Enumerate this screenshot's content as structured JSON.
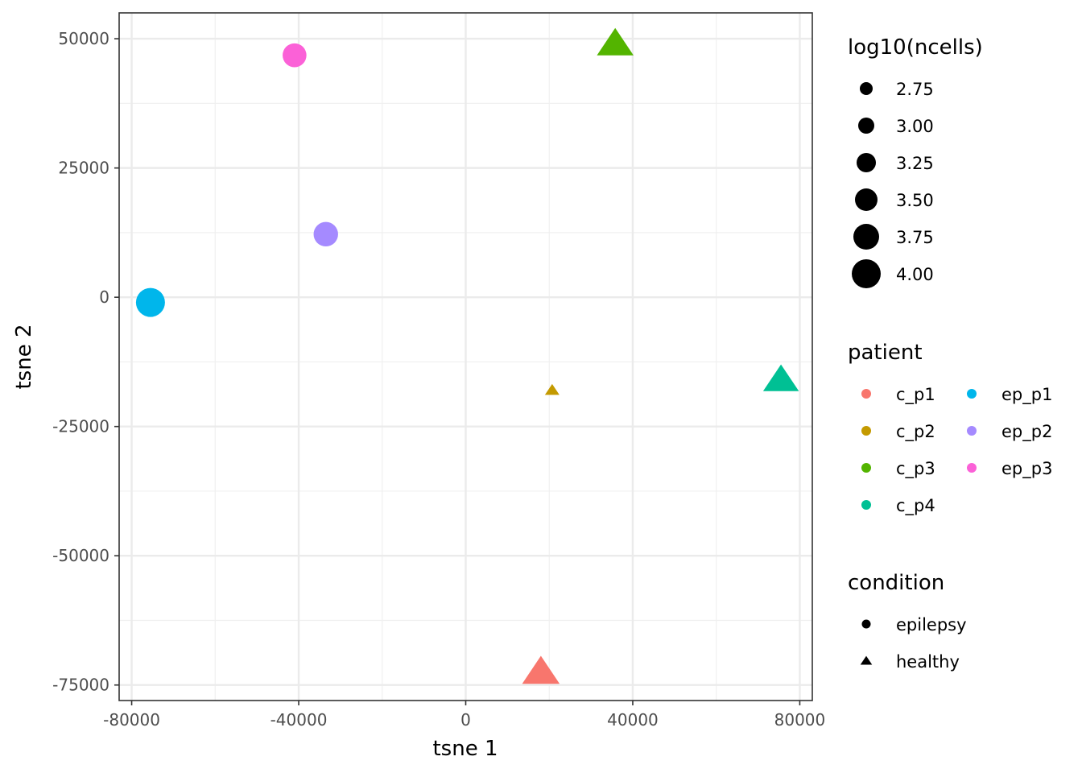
{
  "chart_data": {
    "type": "scatter",
    "title": "",
    "xlabel": "tsne 1",
    "ylabel": "tsne 2",
    "xlim": [
      -83000,
      83000
    ],
    "ylim": [
      -78000,
      55000
    ],
    "x_ticks": [
      -80000,
      -40000,
      0,
      40000,
      80000
    ],
    "x_tick_labels": [
      "-80000",
      "-40000",
      "0",
      "40000",
      "80000"
    ],
    "y_ticks": [
      50000,
      25000,
      0,
      -25000,
      -50000,
      -75000
    ],
    "y_tick_labels": [
      "50000",
      "25000",
      "0",
      "-25000",
      "-50000",
      "-75000"
    ],
    "grid": true,
    "legend_position": "right",
    "points": [
      {
        "patient": "ep_p3",
        "condition": "epilepsy",
        "x": -41000,
        "y": 46800,
        "log10_ncells": 3.6
      },
      {
        "patient": "c_p3",
        "condition": "healthy",
        "x": 35800,
        "y": 49000,
        "log10_ncells": 3.9
      },
      {
        "patient": "ep_p2",
        "condition": "epilepsy",
        "x": -33500,
        "y": 12200,
        "log10_ncells": 3.65
      },
      {
        "patient": "ep_p1",
        "condition": "epilepsy",
        "x": -75500,
        "y": -1000,
        "log10_ncells": 4.0
      },
      {
        "patient": "c_p4",
        "condition": "healthy",
        "x": 75500,
        "y": -16000,
        "log10_ncells": 3.85
      },
      {
        "patient": "c_p2",
        "condition": "healthy",
        "x": 20700,
        "y": -18000,
        "log10_ncells": 2.6
      },
      {
        "patient": "c_p1",
        "condition": "healthy",
        "x": 18000,
        "y": -72500,
        "log10_ncells": 3.95
      }
    ],
    "legends": {
      "size": {
        "title": "log10(ncells)",
        "entries": [
          {
            "label": "2.75",
            "value": 2.75
          },
          {
            "label": "3.00",
            "value": 3.0
          },
          {
            "label": "3.25",
            "value": 3.25
          },
          {
            "label": "3.50",
            "value": 3.5
          },
          {
            "label": "3.75",
            "value": 3.75
          },
          {
            "label": "4.00",
            "value": 4.0
          }
        ]
      },
      "patient": {
        "title": "patient",
        "entries": [
          {
            "label": "c_p1",
            "color": "#F8766D"
          },
          {
            "label": "c_p2",
            "color": "#C49A00"
          },
          {
            "label": "c_p3",
            "color": "#53B400"
          },
          {
            "label": "c_p4",
            "color": "#00C094"
          },
          {
            "label": "ep_p1",
            "color": "#00B6EB"
          },
          {
            "label": "ep_p2",
            "color": "#A58AFF"
          },
          {
            "label": "ep_p3",
            "color": "#FB61D7"
          }
        ]
      },
      "condition": {
        "title": "condition",
        "entries": [
          {
            "label": "epilepsy",
            "shape": "circle"
          },
          {
            "label": "healthy",
            "shape": "triangle"
          }
        ]
      }
    }
  }
}
